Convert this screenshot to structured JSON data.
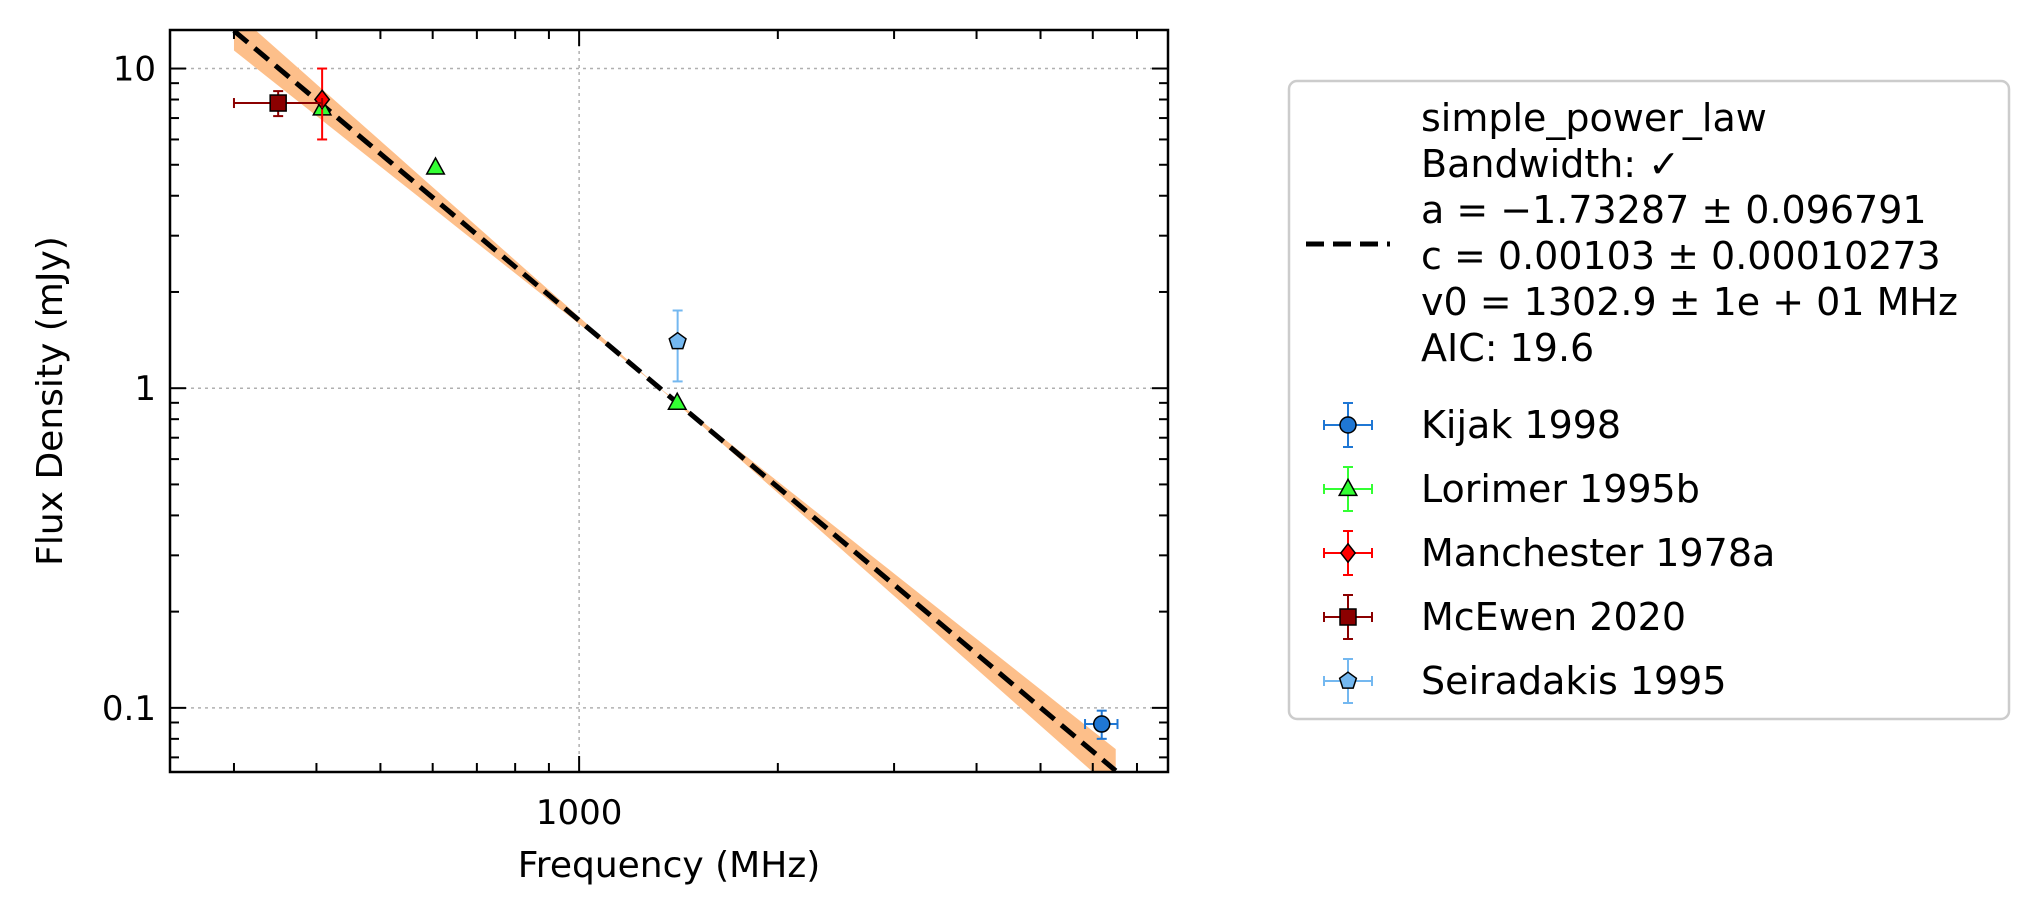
{
  "chart_data": {
    "type": "scatter",
    "xlabel": "Frequency (MHz)",
    "ylabel": "Flux Density (mJy)",
    "x_scale": "log",
    "y_scale": "log",
    "xlim": [
      240,
      7800
    ],
    "ylim": [
      0.063,
      13.2
    ],
    "x_ticks": [
      {
        "value": 1000,
        "label": "1000"
      }
    ],
    "y_ticks": [
      {
        "value": 0.1,
        "label": "0.1"
      },
      {
        "value": 1,
        "label": "1"
      },
      {
        "value": 10,
        "label": "10"
      }
    ],
    "grid": true,
    "legend_position": "outside-right",
    "fit": {
      "lines": [
        "simple_power_law",
        "Bandwidth: ✓",
        "a = −1.73287 ± 0.096791",
        "c = 0.00103 ± 0.00010273",
        "v0 = 1302.9 ± 1e + 01 MHz",
        "AIC: 19.6"
      ],
      "a": -1.73287,
      "a_err": 0.096791,
      "c": 0.00103,
      "v0": 1302.9,
      "x_range": [
        300,
        6500
      ],
      "color": "#000000",
      "band_color": "#fdbf8a"
    },
    "series": [
      {
        "name": "Kijak 1998",
        "marker": "circle",
        "color": "#1f77d4",
        "ecolor": "#1f77d4",
        "points": [
          {
            "x": 6190,
            "y": 0.089,
            "xerr": [
              350,
              350
            ],
            "yerr": [
              0.009,
              0.009
            ]
          }
        ]
      },
      {
        "name": "Lorimer 1995b",
        "marker": "triangle",
        "color": "#33ff33",
        "ecolor": "#33ff33",
        "points": [
          {
            "x": 408,
            "y": 7.5,
            "xerr": [
              0,
              0
            ],
            "yerr": [
              0,
              0
            ]
          },
          {
            "x": 606,
            "y": 4.9,
            "xerr": [
              0,
              0
            ],
            "yerr": [
              0,
              0
            ]
          },
          {
            "x": 1408,
            "y": 0.9,
            "xerr": [
              0,
              0
            ],
            "yerr": [
              0,
              0
            ]
          }
        ]
      },
      {
        "name": "Manchester 1978a",
        "marker": "diamond",
        "color": "#ff0000",
        "ecolor": "#ff0000",
        "points": [
          {
            "x": 408,
            "y": 8.0,
            "xerr": [
              0,
              0
            ],
            "yerr": [
              2.0,
              2.0
            ]
          }
        ]
      },
      {
        "name": "McEwen 2020",
        "marker": "square",
        "color": "#8b0000",
        "ecolor": "#8b0000",
        "points": [
          {
            "x": 350,
            "y": 7.8,
            "xerr": [
              50,
              58
            ],
            "yerr": [
              0.7,
              0.7
            ]
          }
        ]
      },
      {
        "name": "Seiradakis 1995",
        "marker": "pentagon",
        "color": "#74b8f0",
        "ecolor": "#74b8f0",
        "points": [
          {
            "x": 1410,
            "y": 1.4,
            "xerr": [
              0,
              0
            ],
            "yerr": [
              0.35,
              0.35
            ]
          }
        ]
      }
    ]
  }
}
